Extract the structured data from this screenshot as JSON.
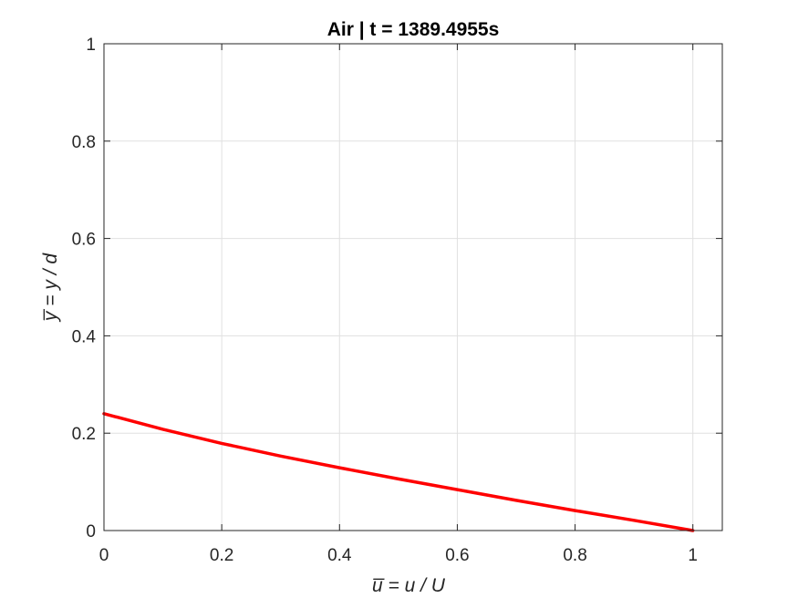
{
  "chart_data": {
    "type": "line",
    "title": "Air | t = 1389.4955s",
    "xlabel": "u̅ = u / U",
    "ylabel": "y̅ = y / d",
    "xlim": [
      0,
      1.05
    ],
    "ylim": [
      0,
      1
    ],
    "xticks": [
      0,
      0.2,
      0.4,
      0.6,
      0.8,
      1
    ],
    "xtick_labels": [
      "0",
      "0.2",
      "0.4",
      "0.6",
      "0.8",
      "1"
    ],
    "yticks": [
      0,
      0.2,
      0.4,
      0.6,
      0.8,
      1
    ],
    "ytick_labels": [
      "0",
      "0.2",
      "0.4",
      "0.6",
      "0.8",
      "1"
    ],
    "grid": true,
    "series": [
      {
        "color": "#ff0000",
        "x": [
          0,
          0.1,
          0.2,
          0.3,
          0.4,
          0.5,
          0.6,
          0.7,
          0.8,
          0.9,
          1.0
        ],
        "y": [
          0.24,
          0.208,
          0.179,
          0.153,
          0.129,
          0.106,
          0.084,
          0.062,
          0.041,
          0.021,
          0
        ]
      }
    ]
  }
}
